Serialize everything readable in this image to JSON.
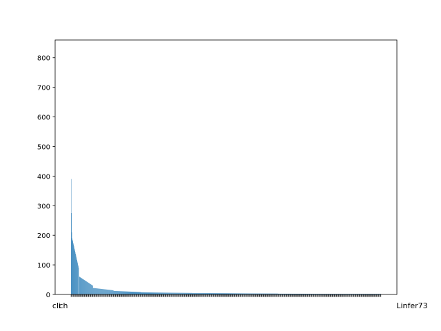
{
  "chart_data": {
    "type": "bar",
    "title": "",
    "xlabel": "",
    "ylabel": "",
    "ylim": [
      0,
      860
    ],
    "yticks": [
      "0",
      "100",
      "200",
      "300",
      "400",
      "500",
      "600",
      "700",
      "800"
    ],
    "bar_color": "#1f77b4",
    "grid": false,
    "legend": "none",
    "x_tick_labels_visible": [
      "cli",
      "ch",
      "Linfer73"
    ],
    "series": [
      {
        "segments": [
          {
            "n": 1,
            "from": 390,
            "to": 390
          },
          {
            "n": 1,
            "from": 275,
            "to": 275
          },
          {
            "n": 1,
            "from": 210,
            "to": 210
          },
          {
            "n": 20,
            "from": 190,
            "to": 90
          },
          {
            "n": 1,
            "from": 0,
            "to": 0
          },
          {
            "n": 40,
            "from": 60,
            "to": 30
          },
          {
            "n": 60,
            "from": 22,
            "to": 14
          },
          {
            "n": 80,
            "from": 12,
            "to": 8
          },
          {
            "n": 150,
            "from": 7,
            "to": 5
          },
          {
            "n": 250,
            "from": 4.5,
            "to": 3
          },
          {
            "n": 300,
            "from": 2.5,
            "to": 2
          }
        ]
      }
    ]
  }
}
